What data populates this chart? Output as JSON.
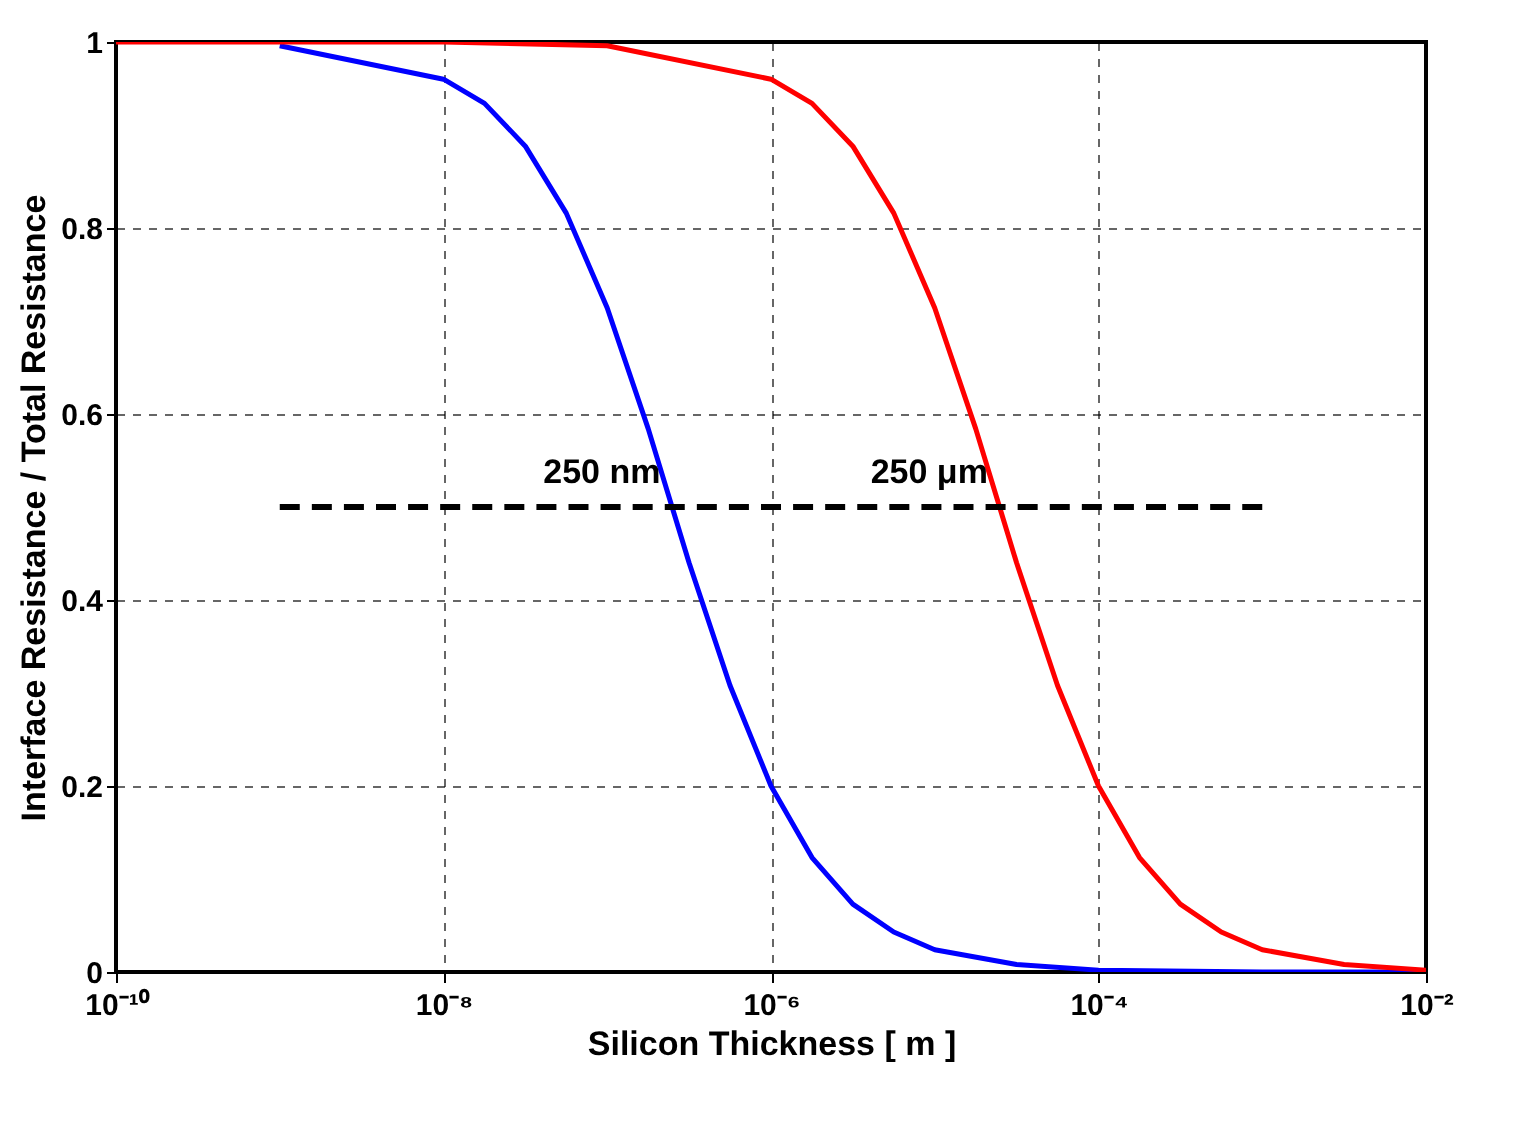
{
  "chart_data": {
    "type": "line",
    "xlabel": "Silicon Thickness [ m ]",
    "ylabel": "Interface Resistance / Total Resistance",
    "log": "x",
    "grid": true,
    "xlim": [
      1e-10,
      0.01
    ],
    "ylim": [
      0,
      1
    ],
    "xticks": [
      {
        "value": 1e-10,
        "label": "10⁻¹⁰"
      },
      {
        "value": 1e-08,
        "label": "10⁻⁸"
      },
      {
        "value": 1e-06,
        "label": "10⁻⁶"
      },
      {
        "value": 0.0001,
        "label": "10⁻⁴"
      },
      {
        "value": 0.01,
        "label": "10⁻²"
      }
    ],
    "yticks": [
      0,
      0.2,
      0.4,
      0.6,
      0.8,
      1
    ],
    "series": [
      {
        "line_style": "solid",
        "color": "#0000ff",
        "x": [
          1e-09,
          1e-08,
          1.78e-08,
          3.16e-08,
          5.62e-08,
          1e-07,
          1.78e-07,
          3.16e-07,
          5.62e-07,
          1e-06,
          1.78e-06,
          3.16e-06,
          5.62e-06,
          1e-05,
          3.16e-05,
          0.0001,
          0.001,
          0.01
        ],
        "values": [
          0.996,
          0.96,
          0.934,
          0.888,
          0.816,
          0.714,
          0.584,
          0.44,
          0.308,
          0.2,
          0.123,
          0.073,
          0.043,
          0.024,
          0.008,
          0.002,
          0,
          0
        ]
      },
      {
        "line_style": "solid",
        "color": "#ff0000",
        "x": [
          1e-10,
          1e-08,
          1e-07,
          1e-06,
          1.78e-06,
          3.16e-06,
          5.62e-06,
          1e-05,
          1.78e-05,
          3.16e-05,
          5.62e-05,
          0.0001,
          0.000178,
          0.000316,
          0.000562,
          0.001,
          0.00316,
          0.01
        ],
        "values": [
          1,
          1,
          0.996,
          0.96,
          0.934,
          0.888,
          0.816,
          0.714,
          0.584,
          0.44,
          0.308,
          0.2,
          0.123,
          0.073,
          0.043,
          0.024,
          0.008,
          0.002
        ]
      },
      {
        "line_style": "dashed",
        "color": "#000000",
        "x": [
          1e-09,
          0.001
        ],
        "values": [
          0.5,
          0.5
        ]
      }
    ],
    "annotations": [
      {
        "text": "250 nm",
        "x": 2.5e-07,
        "y": 0.5
      },
      {
        "text": "250 μm",
        "x": 2.5e-05,
        "y": 0.5
      }
    ]
  }
}
